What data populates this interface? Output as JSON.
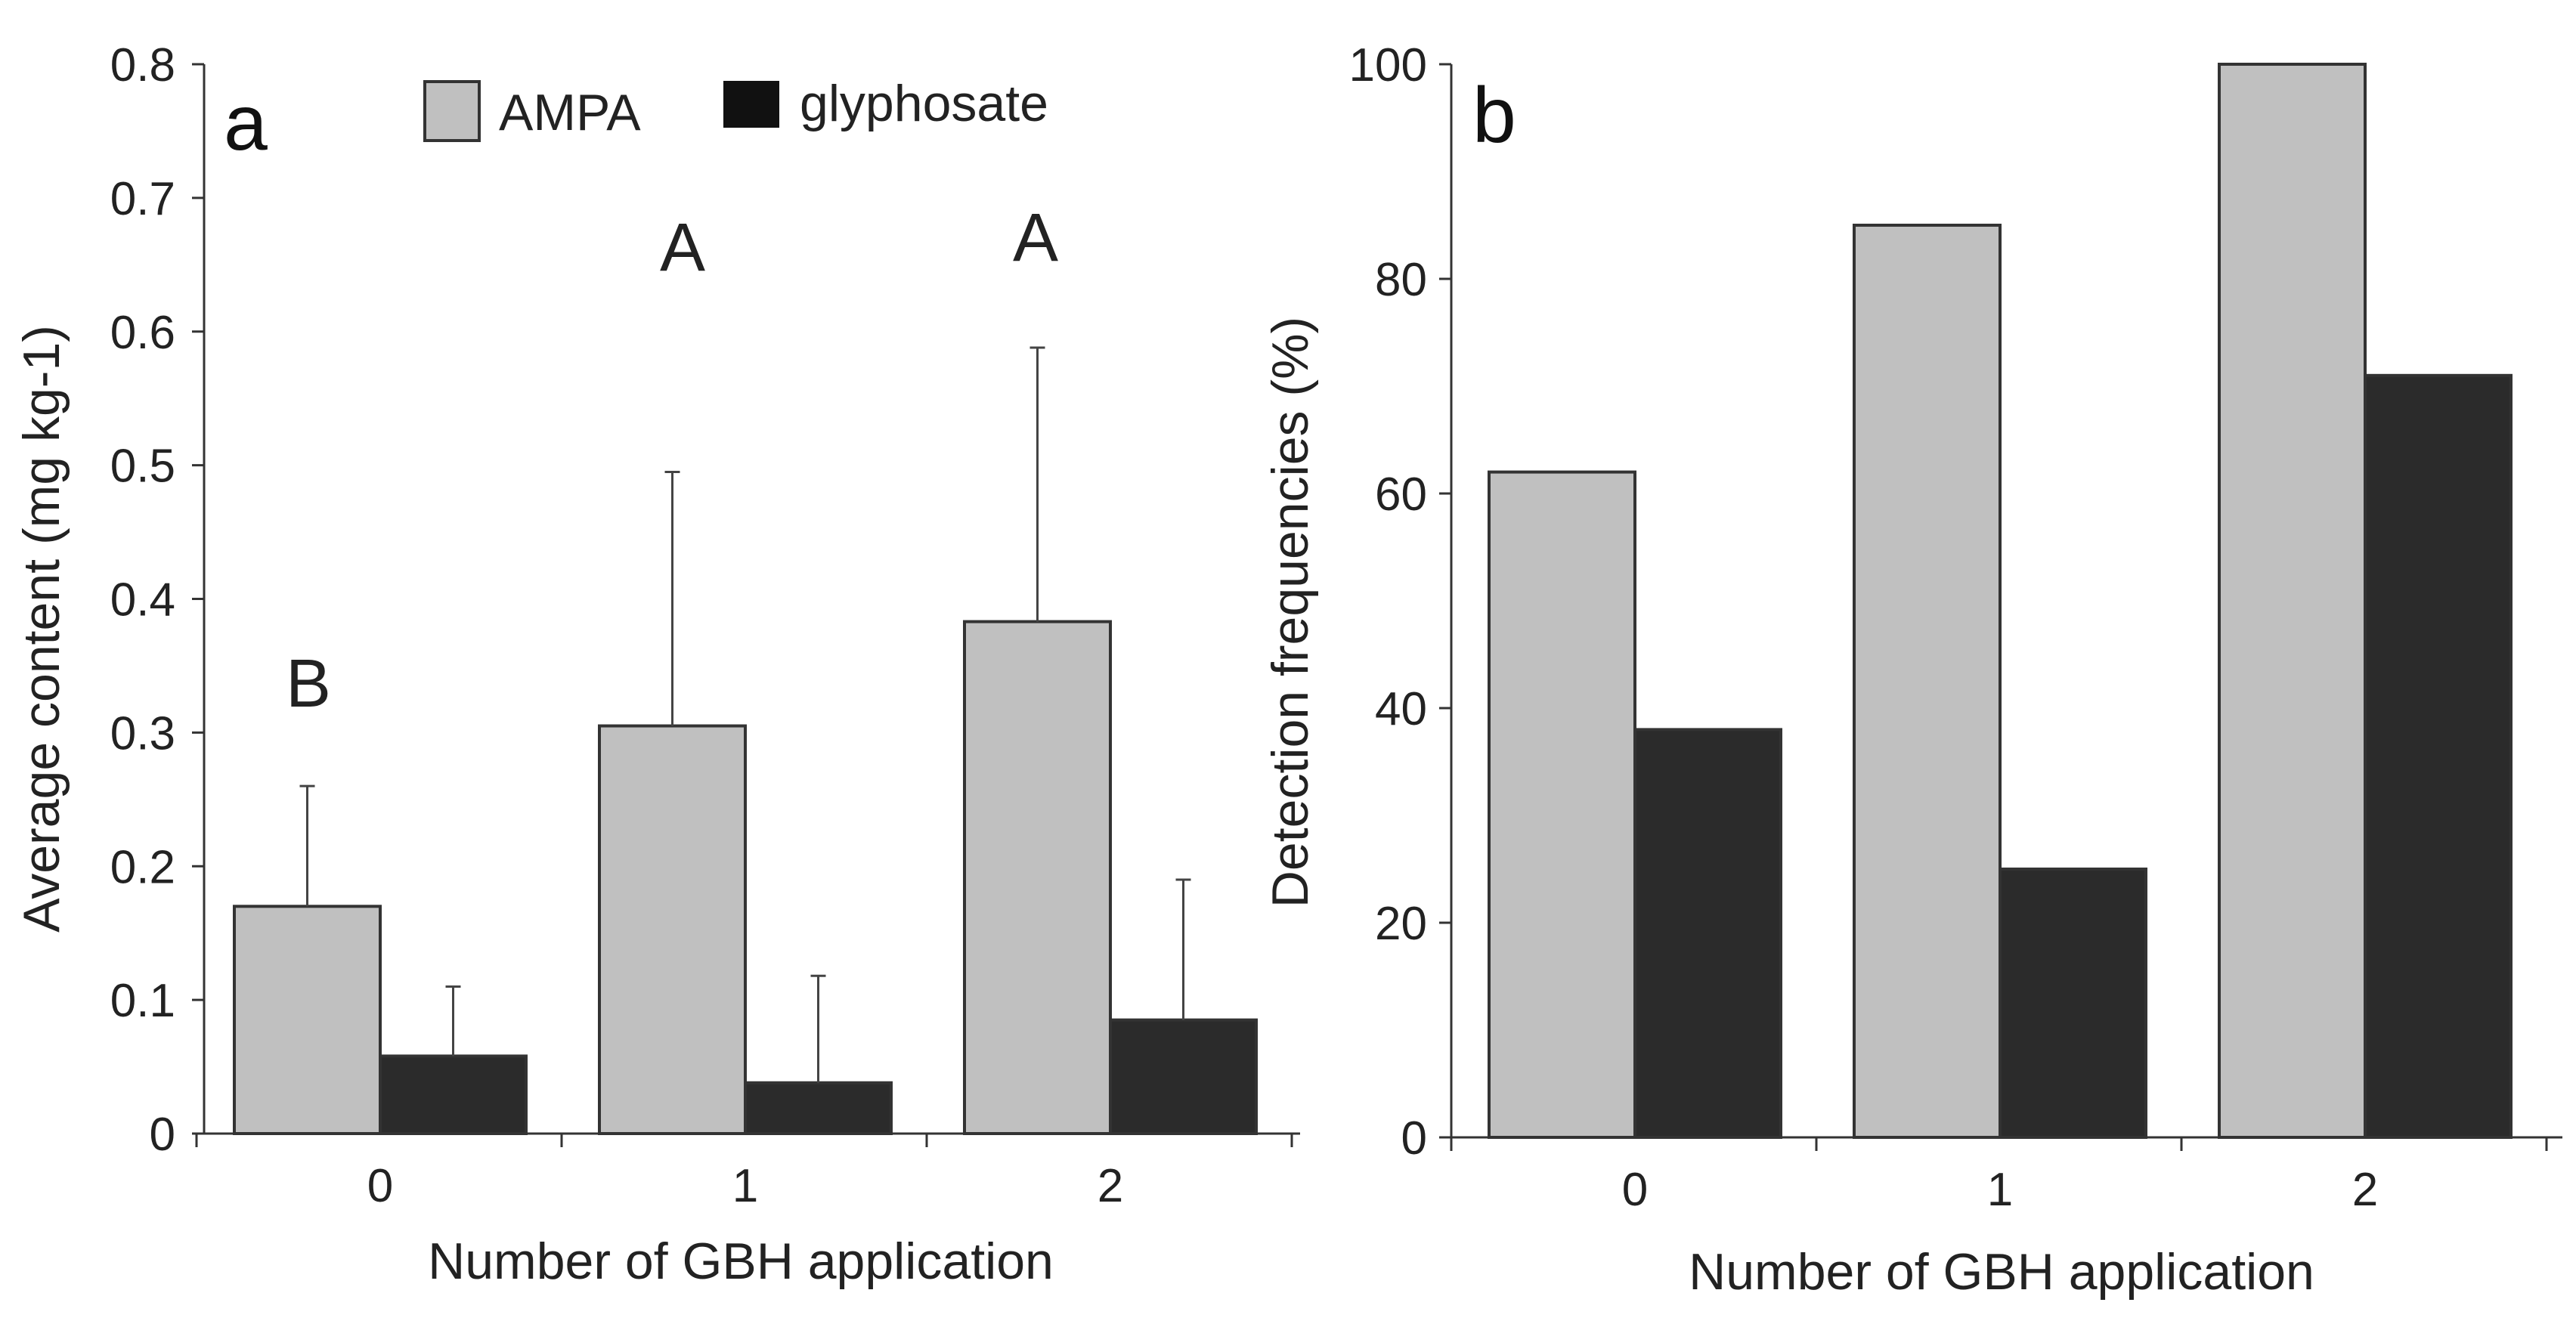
{
  "chart_data": [
    {
      "panel": "a",
      "type": "bar",
      "title": "",
      "xlabel": "Number of GBH application",
      "ylabel": "Average content (mg kg-1)",
      "categories": [
        "0",
        "1",
        "2"
      ],
      "ylim": [
        0,
        0.8
      ],
      "yticks": [
        "0",
        "0.1",
        "0.2",
        "0.3",
        "0.4",
        "0.5",
        "0.6",
        "0.7",
        "0.8"
      ],
      "series": [
        {
          "name": "AMPA",
          "color": "#c0c0c0",
          "values": [
            0.17,
            0.305,
            0.383
          ],
          "error": [
            0.09,
            0.19,
            0.205
          ]
        },
        {
          "name": "glyphosate",
          "color": "#2b2b2b",
          "values": [
            0.058,
            0.038,
            0.085
          ],
          "error": [
            0.052,
            0.08,
            0.105
          ]
        }
      ],
      "annotations": [
        "B",
        "A",
        "A"
      ],
      "legend": {
        "position": "top-center"
      }
    },
    {
      "panel": "b",
      "type": "bar",
      "title": "",
      "xlabel": "Number of GBH application",
      "ylabel": "Detection frequencies (%)",
      "categories": [
        "0",
        "1",
        "2"
      ],
      "ylim": [
        0,
        100
      ],
      "yticks": [
        "0",
        "20",
        "40",
        "60",
        "80",
        "100"
      ],
      "series": [
        {
          "name": "AMPA",
          "color": "#c0c0c0",
          "values": [
            62,
            85,
            100
          ]
        },
        {
          "name": "glyphosate",
          "color": "#2b2b2b",
          "values": [
            38,
            25,
            71
          ]
        }
      ]
    }
  ]
}
